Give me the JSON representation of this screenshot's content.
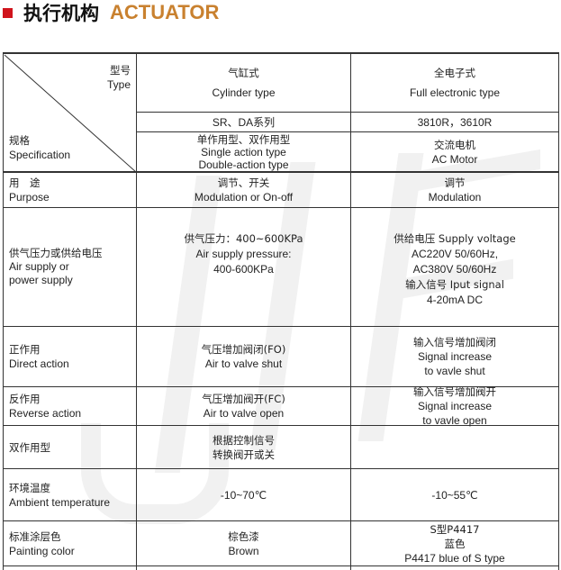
{
  "title": {
    "zh": "执行机构",
    "en": "ACTUATOR",
    "marker_color": "#d0141c",
    "en_color": "#c9812f"
  },
  "watermark": "JIE",
  "header": {
    "type_zh": "型号",
    "type_en": "Type",
    "spec_zh": "规格",
    "spec_en": "Specification",
    "cylinder_zh": "气缸式",
    "cylinder_en": "Cylinder type",
    "electronic_zh": "全电子式",
    "electronic_en": "Full electronic type",
    "series_cyl": "SR、DA系列",
    "series_ele": "3810R，3610R",
    "kind_cyl": [
      "单作用型、双作用型",
      "Single action type",
      "Double-action type"
    ],
    "kind_ele": [
      "交流电机",
      "AC Motor"
    ]
  },
  "rows": [
    {
      "label": [
        "用　途",
        "Purpose"
      ],
      "cyl": [
        "调节、开关",
        "Modulation or On-off"
      ],
      "ele": [
        "调节",
        "Modulation"
      ]
    },
    {
      "label": [
        "供气压力或供给电压",
        "Air supply or",
        "power supply"
      ],
      "cyl": [
        "供气压力：400~600KPa",
        "Air supply pressure:",
        "400-600KPa"
      ],
      "ele": [
        "供给电压  Supply voltage",
        "AC220V 50/60Hz,",
        "AC380V 50/60Hz",
        "输入信号  Iput signal",
        "4-20mA DC"
      ]
    },
    {
      "label": [
        "正作用",
        "Direct action"
      ],
      "cyl": [
        "气压增加阀闭(FO)",
        "Air to valve shut"
      ],
      "ele": [
        "输入信号增加阀闭",
        "Signal increase",
        "to vavle shut"
      ]
    },
    {
      "label": [
        "反作用",
        "Reverse action"
      ],
      "cyl": [
        "气压增加阀开(FC)",
        "Air to valve open"
      ],
      "ele": [
        "输入信号增加阀开",
        "Signal increase",
        "to vavle open"
      ]
    },
    {
      "label": [
        "双作用型"
      ],
      "cyl": [
        "根据控制信号",
        "转换阀开或关"
      ],
      "ele": []
    },
    {
      "label": [
        "环境温度",
        "Ambient temperature"
      ],
      "cyl": [
        "-10~70℃"
      ],
      "ele": [
        "-10~55℃"
      ]
    },
    {
      "label": [
        "标准涂层色",
        "Painting color"
      ],
      "cyl": [
        "棕色漆",
        "Brown"
      ],
      "ele": [
        "S型P4417",
        "蓝色",
        "P4417 blue of S type"
      ]
    }
  ]
}
